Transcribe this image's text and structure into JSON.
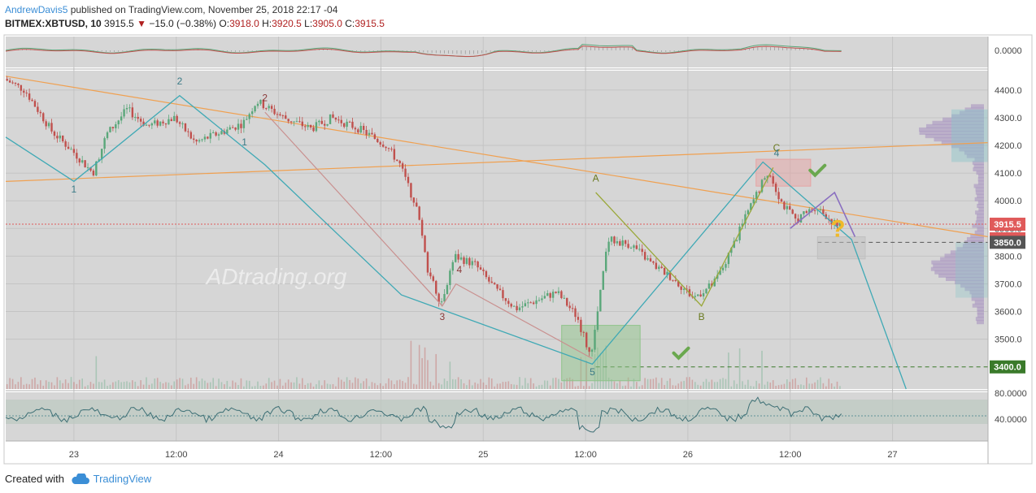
{
  "header": {
    "author": "AndrewDavis5",
    "published_text": " published on TradingView.com, November 25, 2018 22:17 -04",
    "symbol": "BITMEX:XBTUSD, 10",
    "last": "3915.5",
    "change": "−15.0 (−0.38%)",
    "open_label": "O:",
    "open": "3918.0",
    "high_label": "H:",
    "high": "3920.5",
    "low_label": "L:",
    "low": "3905.0",
    "close_label": "C:",
    "close": "3915.5"
  },
  "footer": {
    "created_with": "Created with",
    "brand": "TradingView"
  },
  "watermark": "ADtrading.org",
  "colors": {
    "bg": "#d6d6d6",
    "up": "#5aa77a",
    "down": "#c0504d",
    "wave": "#3fa9b5",
    "trend": "#f0a050",
    "abc": "#9aa83a",
    "rose": "#c9908f"
  },
  "chart_data": {
    "type": "candlestick",
    "price_axis": {
      "ticks": [
        "4400.0",
        "4300.0",
        "4200.0",
        "4100.0",
        "4000.0",
        "3900.0",
        "3800.0",
        "3700.0",
        "3600.0",
        "3500.0"
      ],
      "ylim": [
        3320,
        4470
      ]
    },
    "time_axis": {
      "ticks": [
        "23",
        "12:00",
        "24",
        "12:00",
        "25",
        "12:00",
        "26",
        "12:00",
        "27"
      ]
    },
    "price_labels": [
      {
        "text": "3915.5",
        "price": 3915.5,
        "color": "#e05a5a"
      },
      {
        "text": "02:07",
        "price": 3880,
        "color": "#e05a5a"
      },
      {
        "text": "3850.0",
        "price": 3850,
        "color": "#555555"
      },
      {
        "text": "3400.0",
        "price": 3400,
        "color": "#3a7a2a"
      }
    ],
    "price_path": [
      [
        0,
        4440
      ],
      [
        0.3,
        4400
      ],
      [
        0.7,
        4250
      ],
      [
        1,
        4180
      ],
      [
        1.3,
        4100
      ],
      [
        1.5,
        4240
      ],
      [
        1.8,
        4330
      ],
      [
        2.1,
        4270
      ],
      [
        2.5,
        4300
      ],
      [
        2.8,
        4210
      ],
      [
        3.1,
        4240
      ],
      [
        3.5,
        4280
      ],
      [
        3.7,
        4360
      ],
      [
        4.1,
        4300
      ],
      [
        4.5,
        4260
      ],
      [
        4.8,
        4300
      ],
      [
        5.2,
        4260
      ],
      [
        5.6,
        4200
      ],
      [
        5.8,
        4130
      ],
      [
        6.05,
        3970
      ],
      [
        6.2,
        3760
      ],
      [
        6.4,
        3630
      ],
      [
        6.6,
        3800
      ],
      [
        6.9,
        3770
      ],
      [
        7.2,
        3680
      ],
      [
        7.5,
        3610
      ],
      [
        7.8,
        3640
      ],
      [
        8.1,
        3670
      ],
      [
        8.4,
        3580
      ],
      [
        8.6,
        3430
      ],
      [
        8.85,
        3860
      ],
      [
        9.2,
        3840
      ],
      [
        9.5,
        3770
      ],
      [
        9.8,
        3720
      ],
      [
        10.1,
        3650
      ],
      [
        10.4,
        3700
      ],
      [
        10.6,
        3790
      ],
      [
        10.9,
        3960
      ],
      [
        11.2,
        4110
      ],
      [
        11.4,
        3990
      ],
      [
        11.6,
        3930
      ],
      [
        11.9,
        3980
      ],
      [
        12.2,
        3910
      ]
    ],
    "waves_blue": [
      [
        0,
        4230
      ],
      [
        1.0,
        4070
      ],
      [
        2.55,
        4380
      ],
      [
        3.8,
        4130
      ],
      [
        5.8,
        3660
      ],
      [
        8.6,
        3410
      ],
      [
        11.1,
        4140
      ],
      [
        12.4,
        3860
      ],
      [
        13.2,
        3320
      ]
    ],
    "waves_rose": [
      [
        3.8,
        4320
      ],
      [
        6.4,
        3620
      ],
      [
        6.6,
        3700
      ],
      [
        8.6,
        3430
      ]
    ],
    "waves_abc": [
      [
        8.65,
        4030
      ],
      [
        10.2,
        3620
      ],
      [
        11.25,
        4120
      ]
    ],
    "waves_purple": [
      [
        11.5,
        3900
      ],
      [
        12.15,
        4030
      ],
      [
        12.45,
        3870
      ]
    ],
    "trendlines": [
      [
        [
          0,
          4450
        ],
        [
          14.4,
          3870
        ]
      ],
      [
        [
          0,
          4070
        ],
        [
          14.4,
          4210
        ]
      ]
    ],
    "labels": [
      {
        "text": "2",
        "t": 2.55,
        "p": 4420,
        "color": "#3a7a86"
      },
      {
        "text": "1",
        "t": 1.0,
        "p": 4030,
        "color": "#3a7a86"
      },
      {
        "text": "2",
        "t": 3.8,
        "p": 4360,
        "color": "#8a3a3a"
      },
      {
        "text": "1",
        "t": 3.5,
        "p": 4200,
        "color": "#3a7a86"
      },
      {
        "text": "4",
        "t": 6.65,
        "p": 3740,
        "color": "#8a3a3a"
      },
      {
        "text": "3",
        "t": 6.4,
        "p": 3570,
        "color": "#8a3a3a"
      },
      {
        "text": "A",
        "t": 8.65,
        "p": 4070,
        "color": "#6a7a20"
      },
      {
        "text": "B",
        "t": 10.2,
        "p": 3570,
        "color": "#6a7a20"
      },
      {
        "text": "C",
        "t": 11.3,
        "p": 4180,
        "color": "#6a7a20"
      },
      {
        "text": "4",
        "t": 11.3,
        "p": 4160,
        "color": "#3a7a86"
      },
      {
        "text": "5",
        "t": 8.6,
        "p": 3370,
        "color": "#3a7a86"
      }
    ],
    "boxes": [
      {
        "t0": 8.15,
        "t1": 9.3,
        "p0": 3350,
        "p1": 3550,
        "color": "#8fc48a"
      },
      {
        "t0": 11.0,
        "t1": 11.8,
        "p0": 4053,
        "p1": 4150,
        "color": "#e6a3a3"
      },
      {
        "t0": 11.9,
        "t1": 12.6,
        "p0": 3790,
        "p1": 3870,
        "color": "#c0c0c0"
      }
    ],
    "checks": [
      {
        "t": 9.9,
        "p": 3450
      },
      {
        "t": 11.9,
        "p": 4110
      }
    ],
    "question": {
      "text": "?",
      "t": 12.2,
      "p": 3870
    },
    "osc_axis": {
      "ticks": [
        "0.0000"
      ]
    },
    "rsi_axis": {
      "ticks": [
        "80.0000",
        "40.0000"
      ]
    }
  }
}
